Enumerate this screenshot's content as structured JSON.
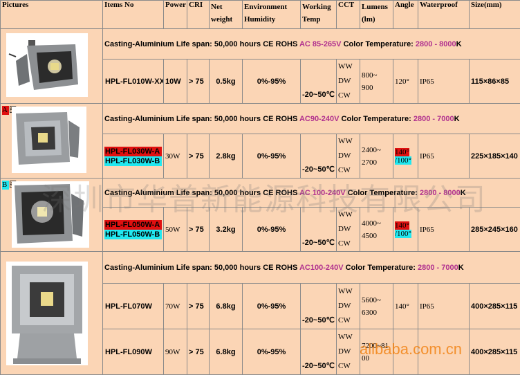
{
  "headers": {
    "pictures": "Pictures",
    "items_no": "Items No",
    "power": "Power",
    "cri": "CRI",
    "net_weight": "Net weight",
    "env_humidity": "Environment Humidity",
    "working_temp": "Working Temp",
    "cct": "CCT",
    "lumens": "Lumens (lm)",
    "angle": "Angle",
    "waterproof": "Waterproof",
    "size": "Size(mm)"
  },
  "groups": [
    {
      "desc_prefix": "Casting-Aluminium Life span: 50,000 hours CE ROHS",
      "desc_voltage": "AC 85-265V",
      "desc_mid": "Color Temperature:",
      "desc_color": "2800 - 8000",
      "desc_suffix": "K",
      "model1": "HPL-FL010W-XX",
      "power": "10W",
      "cri": "> 75",
      "weight": "0.5kg",
      "humidity": "0%-95%",
      "temp": "-20~50℃",
      "cct": [
        "WW",
        "DW",
        "CW"
      ],
      "lumens1": "800~",
      "lumens2": "900",
      "angle1": "120°",
      "waterproof": "IP65",
      "size": "115×86×85"
    },
    {
      "desc_prefix": "Casting-Aluminium Life span: 50,000 hours CE ROHS",
      "desc_voltage": "AC90-240V",
      "desc_mid": "Color Temperature:",
      "desc_color": "2800 - 7000",
      "desc_suffix": "K",
      "tag": "A 图",
      "model1": "HPL-FL030W-A",
      "model2": "HPL-FL030W-B",
      "power": "30W",
      "cri": "> 75",
      "weight": "2.8kg",
      "humidity": "0%-95%",
      "temp": "-20~50℃",
      "cct": [
        "WW",
        "DW",
        "CW"
      ],
      "lumens1": "2400~",
      "lumens2": "2700",
      "angle1": "140°",
      "angle2": "/100°",
      "waterproof": "IP65",
      "size": "225×185×140"
    },
    {
      "desc_prefix": "Casting-Aluminium Life span: 50,000 hours CE ROHS",
      "desc_voltage": "AC 100-240V",
      "desc_mid": "Color Temperature:",
      "desc_color": "2800 - 8000",
      "desc_suffix": "K",
      "tag": "B 图",
      "model1": "HPL-FL050W-A",
      "model2": "HPL-FL050W-B",
      "power": "50W",
      "cri": "> 75",
      "weight": "3.2kg",
      "humidity": "0%-95%",
      "temp": "-20~50℃",
      "cct": [
        "WW",
        "DW",
        "CW"
      ],
      "lumens1": "4000~",
      "lumens2": "4500",
      "angle1": "140°",
      "angle2": "/100°",
      "waterproof": "IP65",
      "size": "285×245×160"
    },
    {
      "desc_prefix": "Casting-Aluminium Life span: 50,000 hours CE ROHS",
      "desc_voltage": "AC100-240V",
      "desc_mid": "Color Temperature:",
      "desc_color": "2800 - 7000",
      "desc_suffix": "K",
      "model1": "HPL-FL070W",
      "power": "70W",
      "cri": "> 75",
      "weight": "6.8kg",
      "humidity": "0%-95%",
      "temp": "-20~50℃",
      "cct": [
        "WW",
        "DW",
        "CW"
      ],
      "lumens1": "5600~",
      "lumens2": "6300",
      "angle1": "140°",
      "waterproof": "IP65",
      "size": "400×285×115"
    },
    {
      "model1": "HPL-FL090W",
      "power": "90W",
      "cri": "> 75",
      "weight": "6.8kg",
      "humidity": "0%-95%",
      "temp": "-20~50℃",
      "cct": [
        "WW",
        "DW",
        "CW"
      ],
      "lumens1": "7200~81",
      "lumens2": "00",
      "size": "400×285×115"
    }
  ],
  "watermarks": {
    "company": "深圳市华普新能源科技有限公司",
    "site": "alibaba.com.cn"
  }
}
